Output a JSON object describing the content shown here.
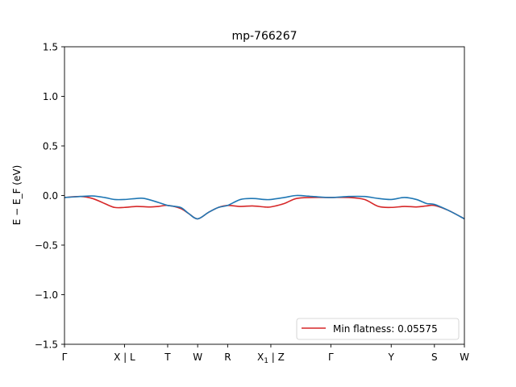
{
  "chart_data": {
    "type": "line",
    "title": "mp-766267",
    "xlabel": "",
    "ylabel": "E − E_F (eV)",
    "ylim": [
      -1.5,
      1.5
    ],
    "xlim": [
      0,
      1
    ],
    "grid": false,
    "legend_placement": "lower-right",
    "yticks": [
      1.5,
      1.0,
      0.5,
      0.0,
      -0.5,
      -1.0,
      -1.5
    ],
    "ytick_labels": [
      "1.5",
      "1.0",
      "0.5",
      "0.0",
      "−0.5",
      "−1.0",
      "−1.5"
    ],
    "kpoints": [
      {
        "label": "Γ",
        "x": 0.0
      },
      {
        "label": "X | L",
        "x": 0.15
      },
      {
        "label": "T",
        "x": 0.258
      },
      {
        "label": "W",
        "x": 0.333
      },
      {
        "label": "R",
        "x": 0.408
      },
      {
        "label": "X1 | Z",
        "x": 0.516
      },
      {
        "label": "Γ",
        "x": 0.666
      },
      {
        "label": "Y",
        "x": 0.817
      },
      {
        "label": "S",
        "x": 0.925
      },
      {
        "label": "W",
        "x": 1.0
      }
    ],
    "series": [
      {
        "name": "Min flatness: 0.05575",
        "color": "#d62728",
        "x": [
          0.0,
          0.04,
          0.07,
          0.1,
          0.125,
          0.15,
          0.18,
          0.21,
          0.235,
          0.258,
          0.29,
          0.31,
          0.333,
          0.36,
          0.385,
          0.408,
          0.44,
          0.47,
          0.5,
          0.516,
          0.55,
          0.58,
          0.62,
          0.666,
          0.71,
          0.75,
          0.785,
          0.817,
          0.85,
          0.88,
          0.905,
          0.925,
          0.96,
          1.0
        ],
        "y": [
          -0.02,
          -0.01,
          -0.03,
          -0.08,
          -0.12,
          -0.12,
          -0.11,
          -0.115,
          -0.11,
          -0.1,
          -0.13,
          -0.18,
          -0.235,
          -0.17,
          -0.12,
          -0.1,
          -0.11,
          -0.105,
          -0.115,
          -0.115,
          -0.08,
          -0.03,
          -0.02,
          -0.02,
          -0.02,
          -0.04,
          -0.11,
          -0.12,
          -0.11,
          -0.115,
          -0.105,
          -0.1,
          -0.15,
          -0.235
        ]
      },
      {
        "name": "",
        "color": "#1f77b4",
        "x": [
          0.0,
          0.04,
          0.07,
          0.1,
          0.125,
          0.15,
          0.18,
          0.2,
          0.235,
          0.258,
          0.29,
          0.31,
          0.333,
          0.36,
          0.385,
          0.408,
          0.44,
          0.47,
          0.5,
          0.516,
          0.55,
          0.58,
          0.62,
          0.666,
          0.71,
          0.75,
          0.785,
          0.817,
          0.85,
          0.88,
          0.905,
          0.925,
          0.96,
          1.0
        ],
        "y": [
          -0.02,
          -0.01,
          -0.005,
          -0.02,
          -0.04,
          -0.04,
          -0.03,
          -0.03,
          -0.07,
          -0.1,
          -0.12,
          -0.18,
          -0.235,
          -0.17,
          -0.12,
          -0.1,
          -0.04,
          -0.03,
          -0.04,
          -0.04,
          -0.02,
          0.0,
          -0.01,
          -0.02,
          -0.01,
          -0.01,
          -0.03,
          -0.04,
          -0.02,
          -0.04,
          -0.08,
          -0.09,
          -0.15,
          -0.235
        ]
      }
    ]
  }
}
